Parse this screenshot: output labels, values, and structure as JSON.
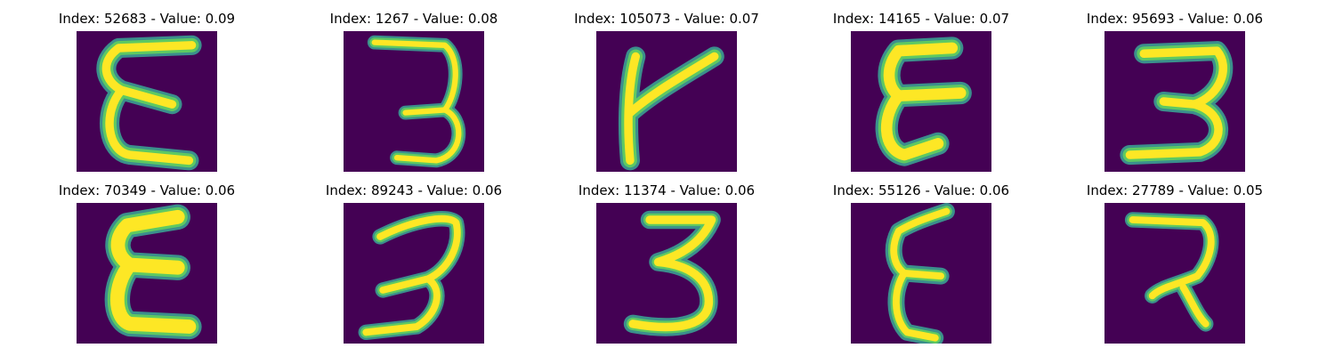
{
  "colors": {
    "background": "#440154",
    "stroke_edge": "#3b8f8c",
    "stroke_mid": "#5ec962",
    "stroke_core": "#fde725"
  },
  "panels": [
    {
      "index": "52683",
      "value": "0.09",
      "title": "Index: 52683 - Value: 0.09",
      "glyph": "e-shape"
    },
    {
      "index": "1267",
      "value": "0.08",
      "title": "Index: 1267 - Value: 0.08",
      "glyph": "three-shape"
    },
    {
      "index": "105073",
      "value": "0.07",
      "title": "Index: 105073 - Value: 0.07",
      "glyph": "y-shape"
    },
    {
      "index": "14165",
      "value": "0.07",
      "title": "Index: 14165 - Value: 0.07",
      "glyph": "e-shape"
    },
    {
      "index": "95693",
      "value": "0.06",
      "title": "Index: 95693 - Value: 0.06",
      "glyph": "three-shape"
    },
    {
      "index": "70349",
      "value": "0.06",
      "title": "Index: 70349 - Value: 0.06",
      "glyph": "e-shape"
    },
    {
      "index": "89243",
      "value": "0.06",
      "title": "Index: 89243 - Value: 0.06",
      "glyph": "three-shape"
    },
    {
      "index": "11374",
      "value": "0.06",
      "title": "Index: 11374 - Value: 0.06",
      "glyph": "three-shape"
    },
    {
      "index": "55126",
      "value": "0.06",
      "title": "Index: 55126 - Value: 0.06",
      "glyph": "e-shape"
    },
    {
      "index": "27789",
      "value": "0.05",
      "title": "Index: 27789 - Value: 0.05",
      "glyph": "two-shape"
    }
  ]
}
